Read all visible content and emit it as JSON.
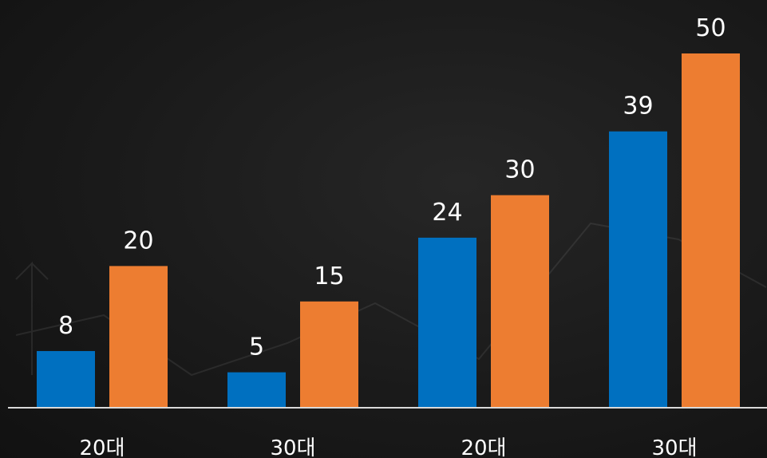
{
  "chart_data": {
    "type": "bar",
    "categories": [
      "20대",
      "30대",
      "20대",
      "30대"
    ],
    "series": [
      {
        "values": [
          8,
          5,
          24,
          39
        ]
      },
      {
        "values": [
          20,
          15,
          30,
          50
        ]
      }
    ],
    "title": "",
    "xlabel": "",
    "ylabel": "",
    "ylim": [
      0,
      50
    ],
    "grid": false,
    "legend": "none",
    "colors": [
      "#0070c0",
      "#ed7d31"
    ],
    "axis_color": "#d9d9d9",
    "label_color": "#ffffff"
  }
}
